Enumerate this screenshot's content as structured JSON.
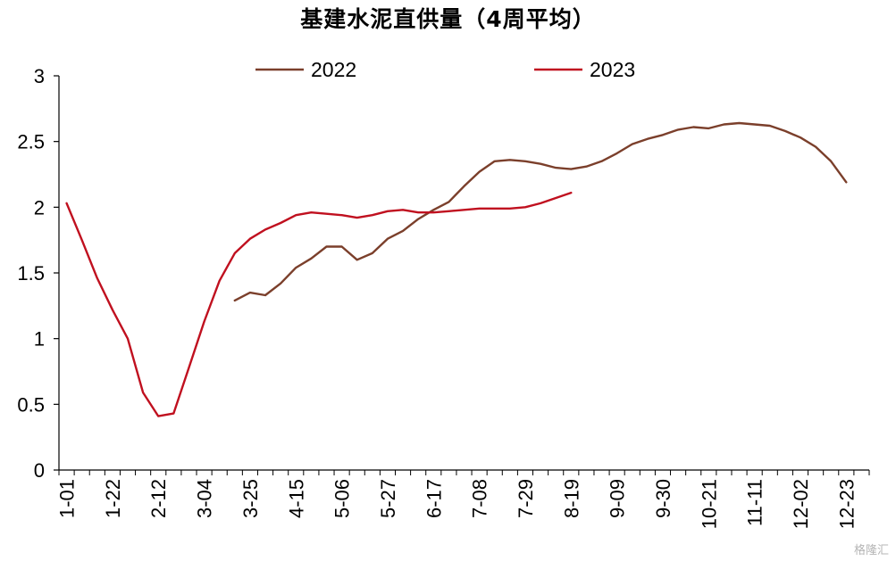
{
  "chart_data": {
    "type": "line",
    "title": "基建水泥直供量（4周平均）",
    "ylim": [
      0,
      3
    ],
    "yticks": [
      "0",
      "0.5",
      "1",
      "1.5",
      "2",
      "2.5",
      "3"
    ],
    "xtick_labels": [
      "1-01",
      "1-22",
      "2-12",
      "3-04",
      "3-25",
      "4-15",
      "5-06",
      "5-27",
      "6-17",
      "7-08",
      "7-29",
      "8-19",
      "9-09",
      "9-30",
      "10-21",
      "11-11",
      "12-02",
      "12-23"
    ],
    "legend_position": "top",
    "grid": false,
    "series": [
      {
        "name": "2022",
        "color": "#7b3f2b",
        "start_week": 11,
        "values": [
          1.29,
          1.35,
          1.33,
          1.42,
          1.54,
          1.61,
          1.7,
          1.7,
          1.6,
          1.65,
          1.76,
          1.82,
          1.91,
          1.98,
          2.04,
          2.16,
          2.27,
          2.35,
          2.36,
          2.35,
          2.33,
          2.3,
          2.29,
          2.31,
          2.35,
          2.41,
          2.48,
          2.52,
          2.55,
          2.59,
          2.61,
          2.6,
          2.63,
          2.64,
          2.63,
          2.62,
          2.58,
          2.53,
          2.46,
          2.35,
          2.19
        ]
      },
      {
        "name": "2023",
        "color": "#c0101f",
        "start_week": 0,
        "values": [
          2.03,
          1.75,
          1.46,
          1.22,
          1.0,
          0.59,
          0.41,
          0.43,
          0.78,
          1.13,
          1.44,
          1.65,
          1.76,
          1.83,
          1.88,
          1.94,
          1.96,
          1.95,
          1.94,
          1.92,
          1.94,
          1.97,
          1.98,
          1.96,
          1.96,
          1.97,
          1.98,
          1.99,
          1.99,
          1.99,
          2.0,
          2.03,
          2.07,
          2.11
        ]
      }
    ]
  },
  "watermark": "格隆汇"
}
